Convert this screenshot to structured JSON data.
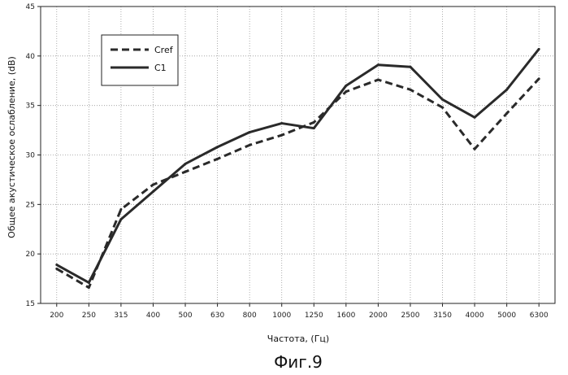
{
  "chart_data": {
    "type": "line",
    "title": "",
    "xlabel": "Частота, (Гц)",
    "ylabel": "Общее акустическое ослабление, (dB)",
    "caption": "Фиг.9",
    "categories": [
      "200",
      "250",
      "315",
      "400",
      "500",
      "630",
      "800",
      "1000",
      "1250",
      "1600",
      "2000",
      "2500",
      "3150",
      "4000",
      "5000",
      "6300"
    ],
    "ylim": [
      15,
      45
    ],
    "yticks": [
      "15",
      "20",
      "25",
      "30",
      "35",
      "40",
      "45"
    ],
    "grid": "dotted",
    "legend_position": "top-left",
    "series": [
      {
        "name": "Cref",
        "style": "dashed",
        "color": "#2a2a2a",
        "values": [
          18.5,
          16.6,
          24.5,
          27.0,
          28.3,
          29.6,
          31.0,
          32.0,
          33.3,
          36.4,
          37.6,
          36.6,
          34.8,
          30.6,
          34.2,
          37.7
        ]
      },
      {
        "name": "C1",
        "style": "solid",
        "color": "#2a2a2a",
        "values": [
          18.9,
          17.1,
          23.5,
          26.3,
          29.1,
          30.8,
          32.3,
          33.2,
          32.7,
          37.0,
          39.1,
          38.9,
          35.6,
          33.8,
          36.6,
          40.7
        ]
      }
    ]
  }
}
